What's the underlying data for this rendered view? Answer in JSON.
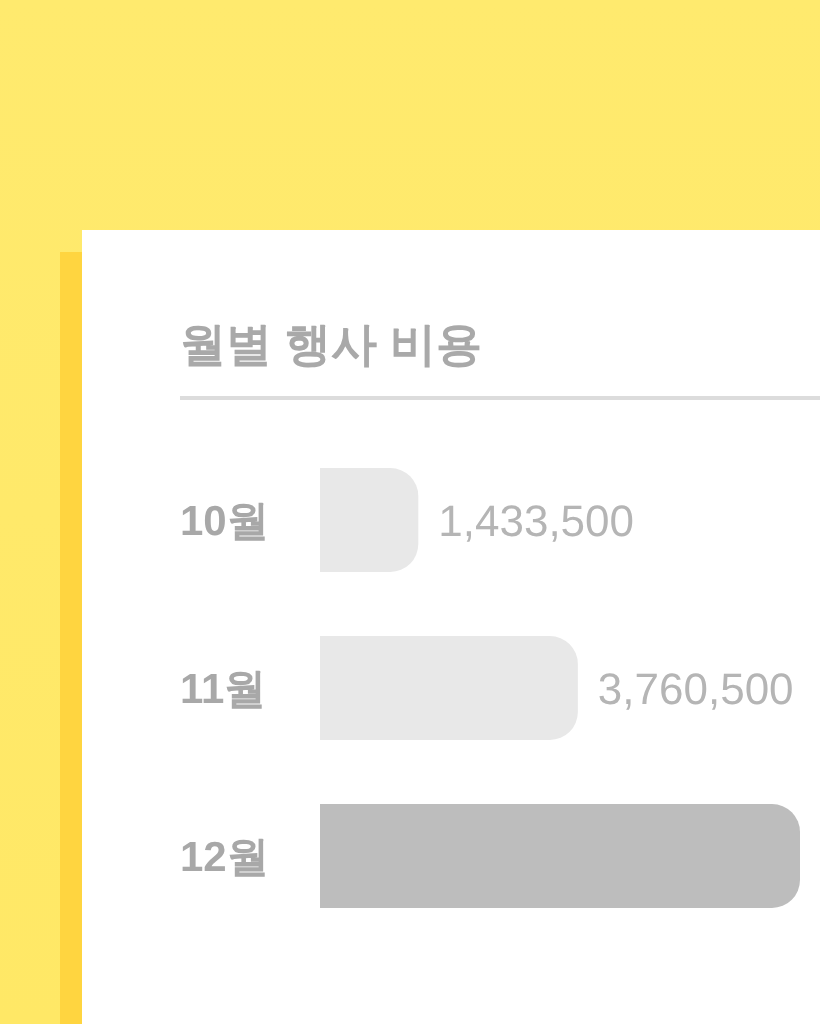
{
  "chart_data": {
    "type": "bar",
    "orientation": "horizontal",
    "title": "월별 행사 비용",
    "categories": [
      "10월",
      "11월",
      "12월"
    ],
    "values": [
      1433500,
      3760500,
      7000000
    ],
    "colors": [
      "#e8e8e8",
      "#e8e8e8",
      "#bdbdbd"
    ],
    "value_labels": [
      "1,433,500",
      "3,760,500",
      null
    ],
    "tick_labels": "y"
  }
}
